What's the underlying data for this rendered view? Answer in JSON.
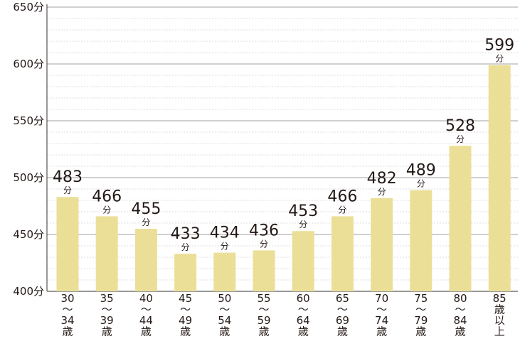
{
  "chart_data": {
    "type": "bar",
    "categories": [
      [
        "30",
        "～",
        "34",
        "歳"
      ],
      [
        "35",
        "～",
        "39",
        "歳"
      ],
      [
        "40",
        "～",
        "44",
        "歳"
      ],
      [
        "45",
        "～",
        "49",
        "歳"
      ],
      [
        "50",
        "～",
        "54",
        "歳"
      ],
      [
        "55",
        "～",
        "59",
        "歳"
      ],
      [
        "60",
        "～",
        "64",
        "歳"
      ],
      [
        "65",
        "～",
        "69",
        "歳"
      ],
      [
        "70",
        "～",
        "74",
        "歳"
      ],
      [
        "75",
        "～",
        "79",
        "歳"
      ],
      [
        "80",
        "～",
        "84",
        "歳"
      ],
      [
        "85",
        "歳",
        "以",
        "上"
      ]
    ],
    "values": [
      483,
      466,
      455,
      433,
      434,
      436,
      453,
      466,
      482,
      489,
      528,
      599
    ],
    "value_labels": [
      "483",
      "466",
      "455",
      "433",
      "434",
      "436",
      "453",
      "466",
      "482",
      "489",
      "528",
      "599"
    ],
    "value_unit": "分",
    "ylim": [
      400,
      650
    ],
    "yticks": [
      400,
      450,
      500,
      550,
      600,
      650
    ],
    "ytick_labels": [
      "400分",
      "450分",
      "500分",
      "550分",
      "600分",
      "650分"
    ],
    "title": "",
    "xlabel": "",
    "ylabel": "",
    "grid": "horizontal",
    "colors": {
      "bar": "#ebdf98",
      "major_grid": "#a0a0a0",
      "minor_grid": "#dcdcdc",
      "axis": "#333333",
      "text": "#231815"
    }
  }
}
